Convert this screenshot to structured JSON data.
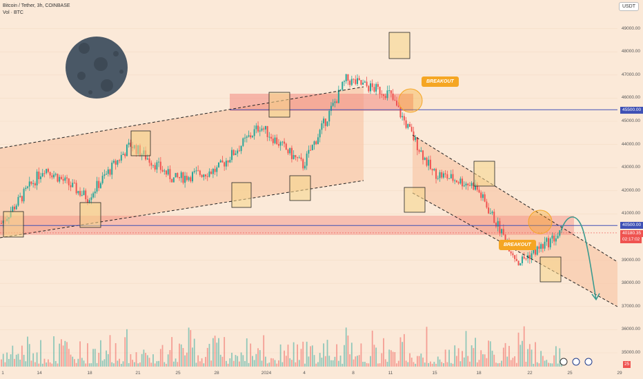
{
  "header": {
    "symbol_line": "Bitcoin / Tether, 3h, COINBASE",
    "volume_line": "Vol · BTC"
  },
  "currency_badge": "USDT",
  "price_tags": {
    "level_upper": "45500.00",
    "level_lower": "40500.00",
    "last_price": "40180.35",
    "countdown": "02:17:02"
  },
  "annotations": {
    "breakout_1": "BREAKOUT",
    "breakout_2": "BREAKOUT"
  },
  "event_badge": "25",
  "colors": {
    "background": "#fbe9d8",
    "up_candle": "#26a69a",
    "down_candle": "#ef5350",
    "zone": "#f28b82",
    "level_line": "#3f51b5",
    "breakout": "#f5a623",
    "projection_arrow": "#3a9a8f"
  },
  "chart_data": {
    "type": "candlestick",
    "y_axis_labels": [
      "49000.00",
      "48000.00",
      "47000.00",
      "46000.00",
      "45000.00",
      "44000.00",
      "43000.00",
      "42000.00",
      "41000.00",
      "39000.00",
      "38000.00",
      "37000.00",
      "36000.00",
      "35000.00"
    ],
    "x_axis_labels": [
      "1",
      "14",
      "18",
      "21",
      "25",
      "28",
      "2024",
      "4",
      "8",
      "11",
      "15",
      "18",
      "22",
      "25",
      "29"
    ],
    "ylim": [
      34600,
      50100
    ],
    "horizontal_levels": [
      45500,
      40500
    ],
    "last_price": 40180.35,
    "approx_close_path": [
      {
        "x": "1",
        "y": 40600
      },
      {
        "x": "14",
        "y": 43000
      },
      {
        "x": "18",
        "y": 41700
      },
      {
        "x": "21",
        "y": 44000
      },
      {
        "x": "25",
        "y": 42500
      },
      {
        "x": "28",
        "y": 42900
      },
      {
        "x": "2024",
        "y": 44800
      },
      {
        "x": "4",
        "y": 43100
      },
      {
        "x": "8",
        "y": 46800
      },
      {
        "x": "11",
        "y": 46200
      },
      {
        "x": "15",
        "y": 42800
      },
      {
        "x": "18",
        "y": 42200
      },
      {
        "x": "22",
        "y": 38900
      },
      {
        "x": "25",
        "y": 40180
      }
    ],
    "projection": {
      "from": 40800,
      "to": 37300
    }
  }
}
